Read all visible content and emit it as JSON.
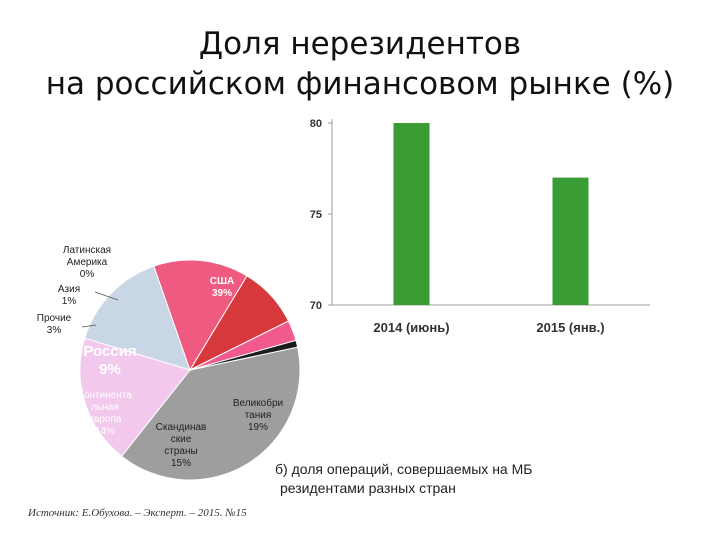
{
  "title": {
    "line1": "Доля нерезидентов",
    "line2": "на российском финансовом рынке (%)"
  },
  "caption": {
    "line1": "б) доля операций, совершаемых на МБ",
    "line2": "резидентами разных стран"
  },
  "source": "Источник: Е.Обухова. – Эксперт. – 2015. №15",
  "colors": {
    "bar": "#3a9c34",
    "axis": "#9e9e9e",
    "pie_usa": "#9e9e9e",
    "pie_uk": "#f2c8ec",
    "pie_scandinavia": "#c8d6e6",
    "pie_cont_europe": "#ef5a80",
    "pie_russia": "#d6383c",
    "pie_other": "#f15a8e",
    "pie_asia": "#1c1c1c",
    "pie_latam": "#e0e0e0"
  },
  "chart_data": [
    {
      "type": "bar",
      "title": "",
      "xlabel": "",
      "ylabel": "",
      "categories": [
        "2014 (июнь)",
        "2015 (янв.)"
      ],
      "values": [
        80,
        77
      ],
      "ylim": [
        70,
        80
      ],
      "yticks": [
        "70",
        "75",
        "80"
      ],
      "grid": false,
      "legend": "none"
    },
    {
      "type": "pie",
      "title": "",
      "legend": "none",
      "slices": [
        {
          "key": "usa",
          "label_lines": [
            "США",
            "39%"
          ],
          "value": 39,
          "color": "#9e9e9e",
          "label_color": "#ffffff"
        },
        {
          "key": "uk",
          "label_lines": [
            "Великобри",
            "тания",
            "19%"
          ],
          "value": 19,
          "color": "#f2c8ec",
          "label_color": "#222222"
        },
        {
          "key": "scandinavia",
          "label_lines": [
            "Скандинав",
            "ские",
            "страны",
            "15%"
          ],
          "value": 15,
          "color": "#c8d6e6",
          "label_color": "#222222"
        },
        {
          "key": "cont_europe",
          "label_lines": [
            "Континента",
            "льная",
            "европа",
            "14%"
          ],
          "value": 14,
          "color": "#ef5a80",
          "label_color": "#ffffff"
        },
        {
          "key": "russia",
          "label_lines": [
            "Россия",
            "9%"
          ],
          "value": 9,
          "color": "#d6383c",
          "label_color": "#ffffff"
        },
        {
          "key": "other",
          "label_lines": [
            "Прочие",
            "3%"
          ],
          "value": 3,
          "color": "#f15a8e",
          "label_color": "#222222"
        },
        {
          "key": "asia",
          "label_lines": [
            "Азия",
            "1%"
          ],
          "value": 1,
          "color": "#1c1c1c",
          "label_color": "#222222"
        },
        {
          "key": "latam",
          "label_lines": [
            "Латинская",
            "Америка",
            "0%"
          ],
          "value": 0,
          "color": "#e0e0e0",
          "label_color": "#222222"
        }
      ]
    }
  ]
}
